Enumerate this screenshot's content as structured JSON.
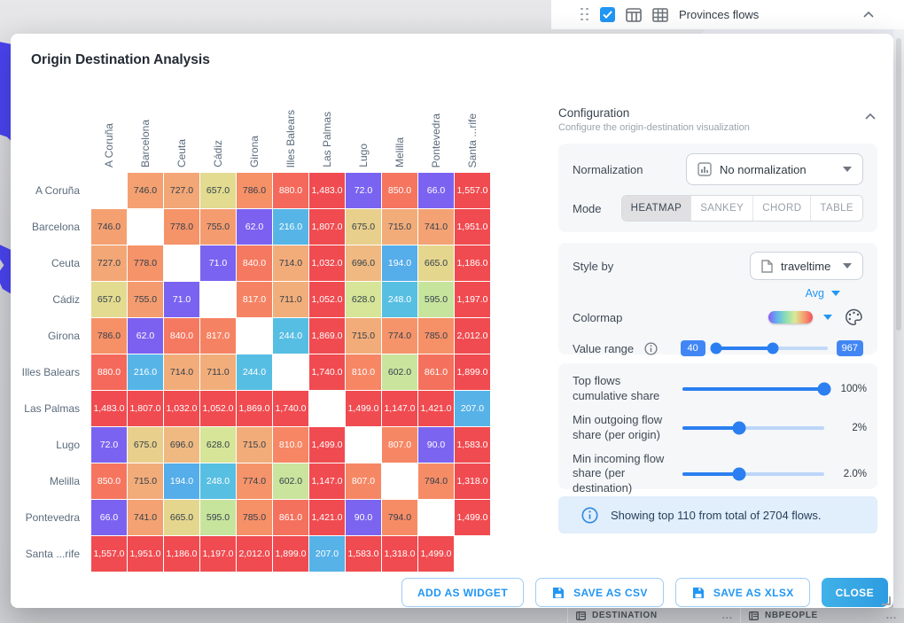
{
  "page": {
    "widget_header": {
      "title": "Provinces flows",
      "icons": [
        "drag-handle",
        "checkbox-checked",
        "table-columns-icon",
        "table-grid-icon",
        "chevron-up-icon"
      ]
    },
    "bottom_columns": [
      {
        "icon": "rows-icon",
        "label": "DESTINATION",
        "menu": "..."
      },
      {
        "icon": "rows-icon",
        "label": "NBPEOPLE",
        "menu": "..."
      }
    ]
  },
  "modal": {
    "title": "Origin Destination Analysis",
    "config": {
      "title": "Configuration",
      "subtitle": "Configure the origin-destination visualization",
      "collapse_icon": "chevron-up-icon",
      "normalization_label": "Normalization",
      "normalization_value": "No normalization",
      "mode_label": "Mode",
      "modes": [
        "HEATMAP",
        "SANKEY",
        "CHORD",
        "TABLE"
      ],
      "active_mode": "HEATMAP",
      "style_by_label": "Style by",
      "style_by_value": "traveltime",
      "agg_value": "Avg",
      "colormap_label": "Colormap",
      "colormap_colors": [
        "#8a5cf6",
        "#5fb6ea",
        "#8fdfb1",
        "#dbe897",
        "#f6a071",
        "#f2525e"
      ],
      "value_range_label": "Value range",
      "value_range_min": "40",
      "value_range_max": "967",
      "value_range_handles_percent": [
        2,
        52
      ],
      "sliders": [
        {
          "label": "Top flows cumulative share",
          "value": "100%",
          "percent": 100
        },
        {
          "label": "Min outgoing flow share (per origin)",
          "value": "2%",
          "percent": 40
        },
        {
          "label": "Min incoming flow share (per destination)",
          "value": "2.0%",
          "percent": 40
        }
      ],
      "alert_text": "Showing top 110 from total of 2704 flows."
    },
    "footer": {
      "add_widget": "ADD AS WIDGET",
      "save_csv": "SAVE AS CSV",
      "save_xlsx": "SAVE AS XLSX",
      "close": "CLOSE"
    }
  },
  "chart_data": {
    "type": "heatmap",
    "title": "Origin Destination Analysis",
    "metric": "traveltime (Avg)",
    "rows": [
      "A Coruña",
      "Barcelona",
      "Ceuta",
      "Cádiz",
      "Girona",
      "Illes Balears",
      "Las Palmas",
      "Lugo",
      "Melilla",
      "Pontevedra",
      "Santa ...rife"
    ],
    "cols": [
      "A Coruña",
      "Barcelona",
      "Ceuta",
      "Cádiz",
      "Girona",
      "Illes Balears",
      "Las Palmas",
      "Lugo",
      "Melilla",
      "Pontevedra",
      "Santa ...rife"
    ],
    "values": [
      [
        null,
        746,
        727,
        657,
        786,
        880,
        1483,
        72,
        850,
        66,
        1557
      ],
      [
        746,
        null,
        778,
        755,
        62,
        216,
        1807,
        675,
        715,
        741,
        1951
      ],
      [
        727,
        778,
        null,
        71,
        840,
        714,
        1032,
        696,
        194,
        665,
        1186
      ],
      [
        657,
        755,
        71,
        null,
        817,
        711,
        1052,
        628,
        248,
        595,
        1197
      ],
      [
        786,
        62,
        840,
        817,
        null,
        244,
        1869,
        715,
        774,
        785,
        2012
      ],
      [
        880,
        216,
        714,
        711,
        244,
        null,
        1740,
        810,
        602,
        861,
        1899
      ],
      [
        1483,
        1807,
        1032,
        1052,
        1869,
        1740,
        null,
        1499,
        1147,
        1421,
        207
      ],
      [
        72,
        675,
        696,
        628,
        715,
        810,
        1499,
        null,
        807,
        90,
        1583
      ],
      [
        850,
        715,
        194,
        248,
        774,
        602,
        1147,
        807,
        null,
        794,
        1318
      ],
      [
        66,
        741,
        665,
        595,
        785,
        861,
        1421,
        90,
        794,
        null,
        1499
      ],
      [
        1557,
        1951,
        1186,
        1197,
        2012,
        1899,
        207,
        1583,
        1318,
        1499,
        null
      ]
    ],
    "value_format": "1 decimal, thousands comma",
    "value_range": [
      40,
      967
    ],
    "colormap_stops": [
      [
        40,
        "#7c5ef2"
      ],
      [
        95,
        "#7b66f0"
      ],
      [
        190,
        "#55ace9"
      ],
      [
        250,
        "#57c0e2"
      ],
      [
        420,
        "#8ed7ae"
      ],
      [
        600,
        "#c9e49d"
      ],
      [
        640,
        "#dce695"
      ],
      [
        675,
        "#e8cf8b"
      ],
      [
        705,
        "#f2b07c"
      ],
      [
        790,
        "#f68e66"
      ],
      [
        880,
        "#f4695b"
      ],
      [
        967,
        "#f04b50"
      ]
    ],
    "dark_text_range": [
      560,
      800
    ],
    "dark_text_color": "#33404c",
    "light_text_color": "#ffffff"
  }
}
